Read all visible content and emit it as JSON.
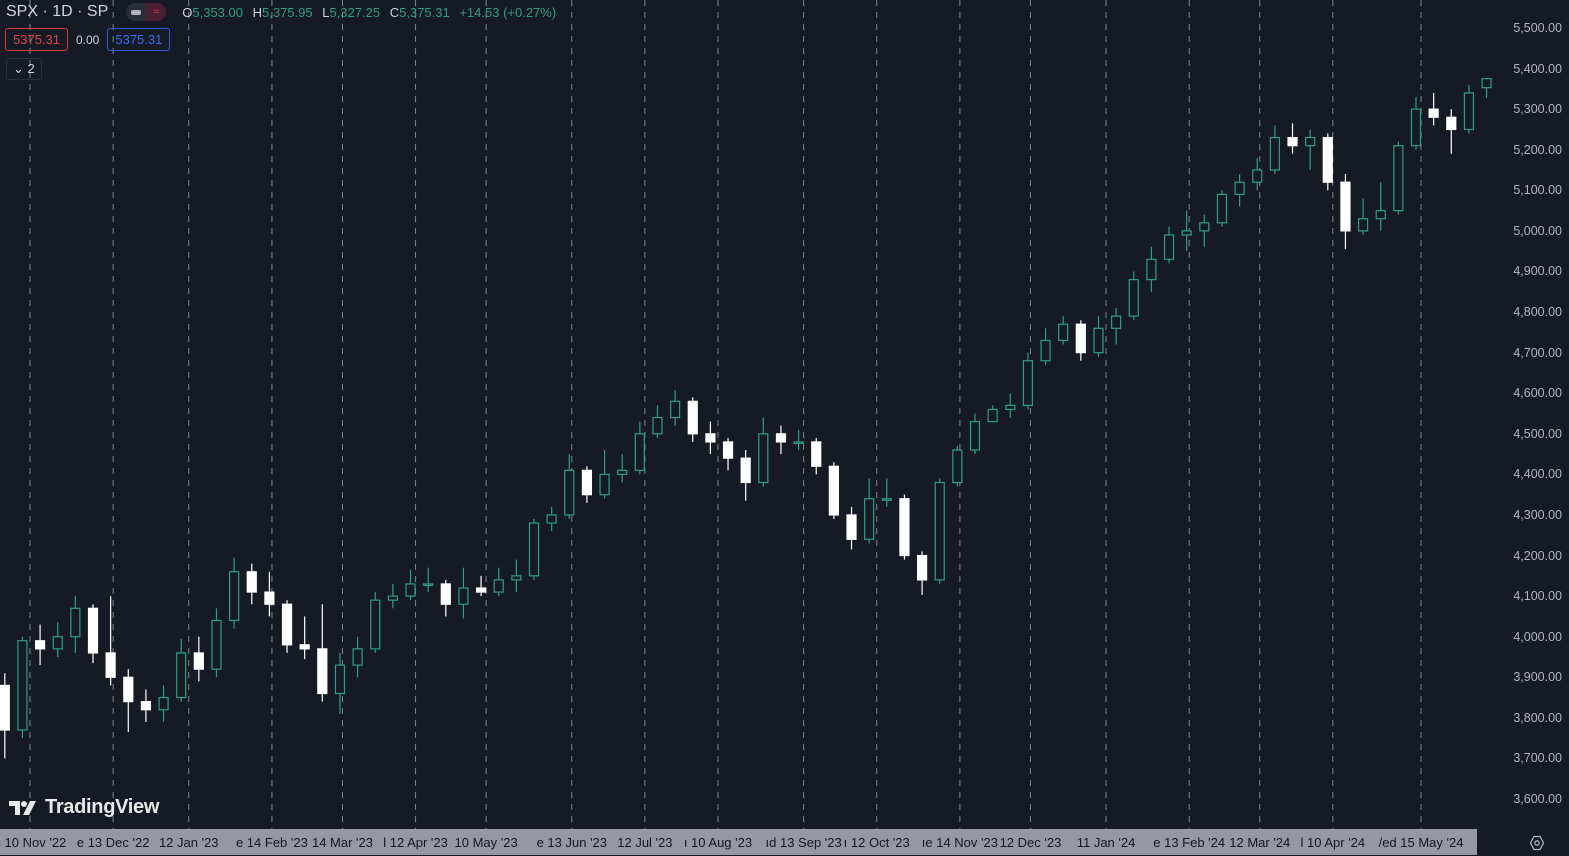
{
  "header": {
    "symbol": "SPX · 1D · SP",
    "ohlc": {
      "o_label": "O",
      "o": "5,353.00",
      "h_label": "H",
      "h": "5,375.95",
      "l_label": "L",
      "l": "5,327.25",
      "c_label": "C",
      "c": "5,375.31",
      "change": "+14.53 (+0.27%)"
    },
    "sell_price": "5375.31",
    "spread": "0.00",
    "buy_price": "5375.31",
    "collapse_count": "2"
  },
  "brand": "TradingView",
  "colors": {
    "background": "#161a25",
    "up": "#2e9e86",
    "down": "#ffffff",
    "grid": "#b2b5be"
  },
  "chart_data": {
    "type": "candlestick",
    "symbol": "SPX",
    "ylim": [
      3550,
      5520
    ],
    "y_ticks": [
      "3,600.00",
      "3,700.00",
      "3,800.00",
      "3,900.00",
      "4,000.00",
      "4,100.00",
      "4,200.00",
      "4,300.00",
      "4,400.00",
      "4,500.00",
      "4,600.00",
      "4,700.00",
      "4,800.00",
      "4,900.00",
      "5,000.00",
      "5,100.00",
      "5,200.00",
      "5,300.00",
      "5,400.00",
      "5,500.00"
    ],
    "x_ticks": [
      {
        "date": "2022-11-10",
        "label": "u 10 Nov '22"
      },
      {
        "date": "2022-12-13",
        "label": "e 13 Dec '22"
      },
      {
        "date": "2023-01-12",
        "label": "12 Jan '23"
      },
      {
        "date": "2023-02-14",
        "label": "e 14 Feb '23"
      },
      {
        "date": "2023-03-14",
        "label": "14 Mar '23"
      },
      {
        "date": "2023-04-12",
        "label": "l 12 Apr '23"
      },
      {
        "date": "2023-05-10",
        "label": "10 May '23"
      },
      {
        "date": "2023-06-13",
        "label": "e 13 Jun '23"
      },
      {
        "date": "2023-07-12",
        "label": "12 Jul '23"
      },
      {
        "date": "2023-08-10",
        "label": "ı 10 Aug '23"
      },
      {
        "date": "2023-09-13",
        "label": "ıd 13 Sep '23"
      },
      {
        "date": "2023-10-12",
        "label": "ı 12 Oct '23"
      },
      {
        "date": "2023-11-14",
        "label": "ıe 14 Nov '23"
      },
      {
        "date": "2023-12-12",
        "label": "12 Dec '23"
      },
      {
        "date": "2024-01-11",
        "label": "11 Jan '24"
      },
      {
        "date": "2024-02-13",
        "label": "e 13 Feb '24"
      },
      {
        "date": "2024-03-12",
        "label": "12 Mar '24"
      },
      {
        "date": "2024-04-10",
        "label": "l 10 Apr '24"
      },
      {
        "date": "2024-05-15",
        "label": "/ed 15 May '24"
      }
    ],
    "candles": [
      [
        "2022-10-31",
        3880,
        3910,
        3700,
        3770
      ],
      [
        "2022-11-07",
        3770,
        4000,
        3750,
        3990
      ],
      [
        "2022-11-14",
        3990,
        4030,
        3930,
        3970
      ],
      [
        "2022-11-21",
        3970,
        4035,
        3950,
        4000
      ],
      [
        "2022-11-28",
        4000,
        4100,
        3960,
        4070
      ],
      [
        "2022-12-05",
        4070,
        4080,
        3935,
        3960
      ],
      [
        "2022-12-12",
        3960,
        4100,
        3880,
        3900
      ],
      [
        "2022-12-19",
        3900,
        3920,
        3765,
        3840
      ],
      [
        "2022-12-26",
        3840,
        3870,
        3790,
        3820
      ],
      [
        "2023-01-02",
        3820,
        3880,
        3790,
        3850
      ],
      [
        "2023-01-09",
        3850,
        3995,
        3840,
        3960
      ],
      [
        "2023-01-16",
        3960,
        4000,
        3890,
        3920
      ],
      [
        "2023-01-23",
        3920,
        4070,
        3900,
        4040
      ],
      [
        "2023-01-30",
        4040,
        4195,
        4020,
        4160
      ],
      [
        "2023-02-06",
        4160,
        4180,
        4080,
        4110
      ],
      [
        "2023-02-13",
        4110,
        4160,
        4050,
        4080
      ],
      [
        "2023-02-20",
        4080,
        4090,
        3960,
        3980
      ],
      [
        "2023-02-27",
        3980,
        4050,
        3945,
        3970
      ],
      [
        "2023-03-06",
        3970,
        4080,
        3840,
        3860
      ],
      [
        "2023-03-13",
        3860,
        3960,
        3810,
        3930
      ],
      [
        "2023-03-20",
        3930,
        4000,
        3900,
        3970
      ],
      [
        "2023-03-27",
        3970,
        4110,
        3960,
        4090
      ],
      [
        "2023-04-03",
        4090,
        4130,
        4070,
        4100
      ],
      [
        "2023-04-10",
        4100,
        4165,
        4090,
        4130
      ],
      [
        "2023-04-17",
        4130,
        4170,
        4110,
        4130
      ],
      [
        "2023-04-24",
        4130,
        4140,
        4050,
        4080
      ],
      [
        "2023-05-01",
        4080,
        4170,
        4045,
        4120
      ],
      [
        "2023-05-08",
        4120,
        4150,
        4100,
        4110
      ],
      [
        "2023-05-15",
        4110,
        4170,
        4100,
        4140
      ],
      [
        "2023-05-22",
        4140,
        4190,
        4110,
        4150
      ],
      [
        "2023-05-29",
        4150,
        4290,
        4140,
        4280
      ],
      [
        "2023-06-05",
        4280,
        4320,
        4260,
        4300
      ],
      [
        "2023-06-12",
        4300,
        4450,
        4290,
        4410
      ],
      [
        "2023-06-19",
        4410,
        4420,
        4330,
        4350
      ],
      [
        "2023-06-26",
        4350,
        4460,
        4340,
        4400
      ],
      [
        "2023-07-03",
        4400,
        4450,
        4380,
        4410
      ],
      [
        "2023-07-10",
        4410,
        4530,
        4400,
        4500
      ],
      [
        "2023-07-17",
        4500,
        4570,
        4490,
        4540
      ],
      [
        "2023-07-24",
        4540,
        4607,
        4520,
        4580
      ],
      [
        "2023-07-31",
        4580,
        4590,
        4480,
        4500
      ],
      [
        "2023-08-07",
        4500,
        4530,
        4450,
        4480
      ],
      [
        "2023-08-14",
        4480,
        4490,
        4410,
        4440
      ],
      [
        "2023-08-21",
        4440,
        4460,
        4335,
        4380
      ],
      [
        "2023-08-28",
        4380,
        4540,
        4370,
        4500
      ],
      [
        "2023-09-04",
        4500,
        4520,
        4450,
        4480
      ],
      [
        "2023-09-11",
        4480,
        4510,
        4460,
        4480
      ],
      [
        "2023-09-18",
        4480,
        4490,
        4400,
        4420
      ],
      [
        "2023-09-25",
        4420,
        4430,
        4290,
        4300
      ],
      [
        "2023-10-02",
        4300,
        4320,
        4215,
        4240
      ],
      [
        "2023-10-09",
        4240,
        4390,
        4230,
        4340
      ],
      [
        "2023-10-16",
        4340,
        4390,
        4320,
        4340
      ],
      [
        "2023-10-23",
        4340,
        4350,
        4190,
        4200
      ],
      [
        "2023-10-30",
        4200,
        4210,
        4103,
        4140
      ],
      [
        "2023-11-06",
        4140,
        4390,
        4130,
        4380
      ],
      [
        "2023-11-13",
        4380,
        4470,
        4370,
        4460
      ],
      [
        "2023-11-20",
        4460,
        4550,
        4450,
        4530
      ],
      [
        "2023-11-27",
        4530,
        4570,
        4530,
        4560
      ],
      [
        "2023-12-04",
        4560,
        4600,
        4540,
        4570
      ],
      [
        "2023-12-11",
        4570,
        4700,
        4560,
        4680
      ],
      [
        "2023-12-18",
        4680,
        4760,
        4670,
        4730
      ],
      [
        "2023-12-25",
        4730,
        4790,
        4720,
        4770
      ],
      [
        "2024-01-01",
        4770,
        4780,
        4680,
        4700
      ],
      [
        "2024-01-08",
        4700,
        4790,
        4690,
        4760
      ],
      [
        "2024-01-15",
        4760,
        4810,
        4720,
        4790
      ],
      [
        "2024-01-22",
        4790,
        4900,
        4780,
        4880
      ],
      [
        "2024-01-29",
        4880,
        4960,
        4850,
        4930
      ],
      [
        "2024-02-05",
        4930,
        5010,
        4920,
        4990
      ],
      [
        "2024-02-12",
        4990,
        5050,
        4950,
        5000
      ],
      [
        "2024-02-19",
        5000,
        5040,
        4960,
        5020
      ],
      [
        "2024-02-26",
        5020,
        5100,
        5010,
        5090
      ],
      [
        "2024-03-04",
        5090,
        5140,
        5060,
        5120
      ],
      [
        "2024-03-11",
        5120,
        5180,
        5100,
        5150
      ],
      [
        "2024-03-18",
        5150,
        5260,
        5140,
        5230
      ],
      [
        "2024-03-25",
        5230,
        5265,
        5190,
        5210
      ],
      [
        "2024-04-01",
        5210,
        5250,
        5150,
        5230
      ],
      [
        "2024-04-08",
        5230,
        5240,
        5100,
        5120
      ],
      [
        "2024-04-15",
        5120,
        5140,
        4955,
        5000
      ],
      [
        "2024-04-22",
        5000,
        5080,
        4990,
        5030
      ],
      [
        "2024-04-29",
        5030,
        5120,
        5000,
        5050
      ],
      [
        "2024-05-06",
        5050,
        5220,
        5040,
        5210
      ],
      [
        "2024-05-13",
        5210,
        5330,
        5200,
        5300
      ],
      [
        "2024-05-20",
        5300,
        5340,
        5260,
        5280
      ],
      [
        "2024-05-27",
        5280,
        5300,
        5190,
        5250
      ],
      [
        "2024-06-03",
        5250,
        5360,
        5240,
        5340
      ],
      [
        "2024-06-10",
        5353,
        5375.95,
        5327.25,
        5375.31
      ]
    ]
  }
}
